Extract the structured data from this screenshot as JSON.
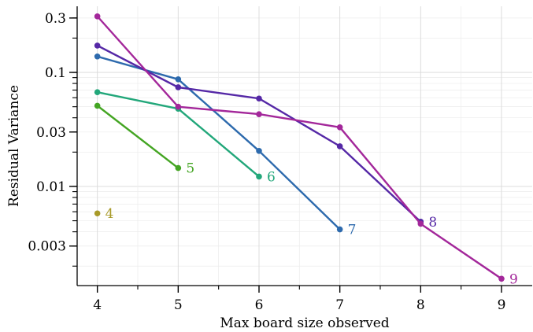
{
  "chart_data": {
    "type": "line",
    "title": "",
    "xlabel": "Max board size observed",
    "ylabel": "Residual Variance",
    "y_scale": "log",
    "xlim": [
      3.75,
      9.38
    ],
    "ylim": [
      0.00135,
      0.38
    ],
    "grid": true,
    "legend": "none",
    "x_ticks": [
      {
        "value": 4,
        "label": "4"
      },
      {
        "value": 5,
        "label": "5"
      },
      {
        "value": 6,
        "label": "6"
      },
      {
        "value": 7,
        "label": "7"
      },
      {
        "value": 8,
        "label": "8"
      },
      {
        "value": 9,
        "label": "9"
      }
    ],
    "y_ticks": [
      {
        "value": 0.003,
        "label": "0.003"
      },
      {
        "value": 0.01,
        "label": "0.01"
      },
      {
        "value": 0.03,
        "label": "0.03"
      },
      {
        "value": 0.1,
        "label": "0.1"
      },
      {
        "value": 0.3,
        "label": "0.3"
      }
    ],
    "series": [
      {
        "label": "4",
        "color": "#a89a28",
        "x": [
          4
        ],
        "y": [
          0.0058
        ]
      },
      {
        "label": "5",
        "color": "#44a523",
        "x": [
          4,
          5
        ],
        "y": [
          0.051,
          0.0145
        ]
      },
      {
        "label": "6",
        "color": "#22a77a",
        "x": [
          4,
          5,
          6
        ],
        "y": [
          0.067,
          0.048,
          0.0122
        ]
      },
      {
        "label": "7",
        "color": "#2d6aad",
        "x": [
          4,
          5,
          6,
          7
        ],
        "y": [
          0.138,
          0.087,
          0.0205,
          0.0042
        ]
      },
      {
        "label": "8",
        "color": "#5528a6",
        "x": [
          4,
          5,
          6,
          7,
          8
        ],
        "y": [
          0.172,
          0.074,
          0.059,
          0.0225,
          0.0049
        ]
      },
      {
        "label": "9",
        "color": "#a3279a",
        "x": [
          4,
          5,
          6,
          7,
          8,
          9
        ],
        "y": [
          0.31,
          0.05,
          0.043,
          0.033,
          0.0047,
          0.00155
        ]
      }
    ]
  }
}
